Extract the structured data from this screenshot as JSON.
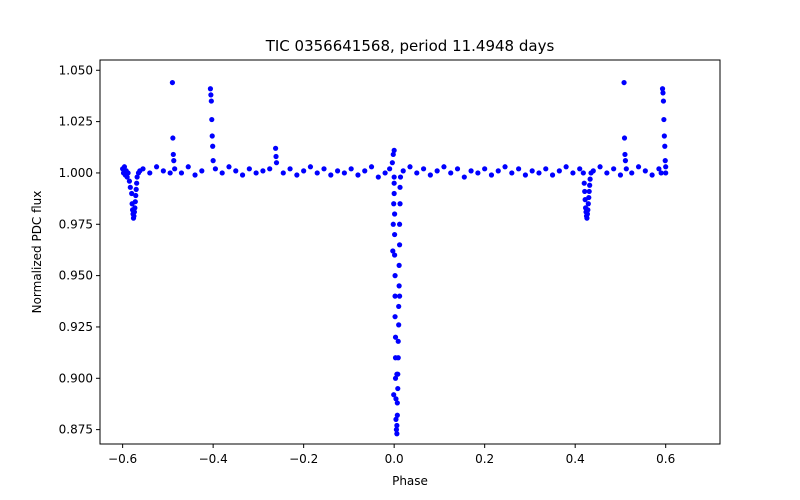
{
  "chart_data": {
    "type": "scatter",
    "title": "TIC 0356641568, period 11.4948 days",
    "xlabel": "Phase",
    "ylabel": "Normalized PDC flux",
    "xlim": [
      -0.65,
      0.72
    ],
    "ylim": [
      0.868,
      1.055
    ],
    "grid": false,
    "legend": "none",
    "marker_color": "#0000ff",
    "x_ticks": [
      -0.6,
      -0.4,
      -0.2,
      0.0,
      0.2,
      0.4,
      0.6
    ],
    "x_tick_labels": [
      "−0.6",
      "−0.4",
      "−0.2",
      "0.0",
      "0.2",
      "0.4",
      "0.6"
    ],
    "y_ticks": [
      0.875,
      0.9,
      0.925,
      0.95,
      0.975,
      1.0,
      1.025,
      1.05
    ],
    "y_tick_labels": [
      "0.875",
      "0.900",
      "0.925",
      "0.950",
      "0.975",
      "1.000",
      "1.025",
      "1.050"
    ],
    "series": [
      {
        "points": [
          [
            -0.6,
            1.002
          ],
          [
            -0.598,
            1.0
          ],
          [
            -0.596,
            1.003
          ],
          [
            -0.594,
            0.999
          ],
          [
            -0.592,
            1.001
          ],
          [
            -0.59,
            0.998
          ],
          [
            -0.588,
            1.0
          ],
          [
            -0.585,
            0.996
          ],
          [
            -0.583,
            0.993
          ],
          [
            -0.58,
            0.99
          ],
          [
            -0.579,
            0.985
          ],
          [
            -0.578,
            0.982
          ],
          [
            -0.577,
            0.98
          ],
          [
            -0.576,
            0.978
          ],
          [
            -0.575,
            0.979
          ],
          [
            -0.574,
            0.981
          ],
          [
            -0.573,
            0.983
          ],
          [
            -0.572,
            0.986
          ],
          [
            -0.571,
            0.989
          ],
          [
            -0.57,
            0.992
          ],
          [
            -0.569,
            0.995
          ],
          [
            -0.568,
            0.998
          ],
          [
            -0.565,
            1.0
          ],
          [
            -0.562,
            1.001
          ],
          [
            -0.555,
            1.002
          ],
          [
            -0.54,
            1.0
          ],
          [
            -0.525,
            1.003
          ],
          [
            -0.51,
            1.001
          ],
          [
            -0.495,
            1.0
          ],
          [
            -0.49,
            1.044
          ],
          [
            -0.489,
            1.017
          ],
          [
            -0.488,
            1.009
          ],
          [
            -0.487,
            1.006
          ],
          [
            -0.485,
            1.002
          ],
          [
            -0.47,
            1.0
          ],
          [
            -0.455,
            1.003
          ],
          [
            -0.44,
            0.999
          ],
          [
            -0.425,
            1.001
          ],
          [
            -0.406,
            1.041
          ],
          [
            -0.405,
            1.038
          ],
          [
            -0.404,
            1.035
          ],
          [
            -0.403,
            1.026
          ],
          [
            -0.402,
            1.018
          ],
          [
            -0.401,
            1.013
          ],
          [
            -0.4,
            1.006
          ],
          [
            -0.395,
            1.002
          ],
          [
            -0.38,
            1.0
          ],
          [
            -0.365,
            1.003
          ],
          [
            -0.35,
            1.001
          ],
          [
            -0.335,
            0.999
          ],
          [
            -0.32,
            1.002
          ],
          [
            -0.305,
            1.0
          ],
          [
            -0.29,
            1.001
          ],
          [
            -0.275,
            1.002
          ],
          [
            -0.262,
            1.012
          ],
          [
            -0.261,
            1.008
          ],
          [
            -0.26,
            1.005
          ],
          [
            -0.245,
            1.0
          ],
          [
            -0.23,
            1.002
          ],
          [
            -0.215,
            0.999
          ],
          [
            -0.2,
            1.001
          ],
          [
            -0.185,
            1.003
          ],
          [
            -0.17,
            1.0
          ],
          [
            -0.155,
            1.002
          ],
          [
            -0.14,
            0.999
          ],
          [
            -0.125,
            1.001
          ],
          [
            -0.11,
            1.0
          ],
          [
            -0.095,
            1.002
          ],
          [
            -0.08,
            0.999
          ],
          [
            -0.065,
            1.001
          ],
          [
            -0.05,
            1.003
          ],
          [
            -0.035,
            0.998
          ],
          [
            -0.02,
            1.0
          ],
          [
            -0.01,
            1.002
          ],
          [
            -0.004,
            1.005
          ],
          [
            -0.002,
            1.009
          ],
          [
            0.0,
            1.011
          ],
          [
            -0.003,
            0.962
          ],
          [
            -0.002,
            0.975
          ],
          [
            -0.001,
            0.985
          ],
          [
            0.0,
            0.998
          ],
          [
            0.0,
            0.995
          ],
          [
            0.0,
            0.99
          ],
          [
            0.001,
            0.98
          ],
          [
            0.001,
            0.97
          ],
          [
            0.001,
            0.96
          ],
          [
            0.002,
            0.95
          ],
          [
            0.002,
            0.94
          ],
          [
            0.002,
            0.93
          ],
          [
            0.003,
            0.92
          ],
          [
            0.003,
            0.91
          ],
          [
            0.003,
            0.9
          ],
          [
            0.004,
            0.89
          ],
          [
            0.004,
            0.88
          ],
          [
            0.005,
            0.875
          ],
          [
            0.006,
            0.873
          ],
          [
            0.006,
            0.877
          ],
          [
            0.007,
            0.882
          ],
          [
            0.007,
            0.888
          ],
          [
            0.008,
            0.895
          ],
          [
            0.008,
            0.902
          ],
          [
            0.009,
            0.91
          ],
          [
            0.009,
            0.918
          ],
          [
            0.01,
            0.926
          ],
          [
            0.01,
            0.935
          ],
          [
            0.011,
            0.945
          ],
          [
            0.011,
            0.955
          ],
          [
            0.012,
            0.965
          ],
          [
            0.012,
            0.975
          ],
          [
            0.013,
            0.985
          ],
          [
            0.013,
            0.993
          ],
          [
            0.014,
            0.998
          ],
          [
            -0.001,
            0.892
          ],
          [
            0.006,
            0.902
          ],
          [
            0.012,
            0.94
          ],
          [
            0.02,
            1.001
          ],
          [
            0.035,
            1.003
          ],
          [
            0.05,
            1.0
          ],
          [
            0.065,
            1.002
          ],
          [
            0.08,
            0.999
          ],
          [
            0.095,
            1.001
          ],
          [
            0.11,
            1.003
          ],
          [
            0.125,
            1.0
          ],
          [
            0.14,
            1.002
          ],
          [
            0.155,
            0.998
          ],
          [
            0.17,
            1.001
          ],
          [
            0.185,
            1.0
          ],
          [
            0.2,
            1.002
          ],
          [
            0.215,
            0.999
          ],
          [
            0.23,
            1.001
          ],
          [
            0.245,
            1.003
          ],
          [
            0.26,
            1.0
          ],
          [
            0.275,
            1.002
          ],
          [
            0.29,
            0.999
          ],
          [
            0.305,
            1.001
          ],
          [
            0.32,
            1.0
          ],
          [
            0.335,
            1.002
          ],
          [
            0.35,
            0.999
          ],
          [
            0.365,
            1.001
          ],
          [
            0.38,
            1.003
          ],
          [
            0.395,
            1.0
          ],
          [
            0.41,
            1.002
          ],
          [
            0.418,
            1.0
          ],
          [
            0.42,
            0.995
          ],
          [
            0.421,
            0.991
          ],
          [
            0.422,
            0.987
          ],
          [
            0.423,
            0.983
          ],
          [
            0.424,
            0.981
          ],
          [
            0.425,
            0.979
          ],
          [
            0.426,
            0.978
          ],
          [
            0.427,
            0.98
          ],
          [
            0.428,
            0.982
          ],
          [
            0.429,
            0.985
          ],
          [
            0.43,
            0.988
          ],
          [
            0.431,
            0.991
          ],
          [
            0.432,
            0.994
          ],
          [
            0.433,
            0.997
          ],
          [
            0.435,
            1.0
          ],
          [
            0.44,
            1.001
          ],
          [
            0.455,
            1.003
          ],
          [
            0.47,
            1.0
          ],
          [
            0.485,
            1.002
          ],
          [
            0.5,
            0.999
          ],
          [
            0.508,
            1.044
          ],
          [
            0.509,
            1.017
          ],
          [
            0.51,
            1.009
          ],
          [
            0.511,
            1.006
          ],
          [
            0.513,
            1.002
          ],
          [
            0.525,
            1.0
          ],
          [
            0.54,
            1.003
          ],
          [
            0.555,
            1.001
          ],
          [
            0.57,
            0.999
          ],
          [
            0.585,
            1.002
          ],
          [
            0.59,
            1.0
          ],
          [
            0.593,
            1.041
          ],
          [
            0.594,
            1.039
          ],
          [
            0.595,
            1.035
          ],
          [
            0.596,
            1.026
          ],
          [
            0.597,
            1.018
          ],
          [
            0.598,
            1.013
          ],
          [
            0.599,
            1.006
          ],
          [
            0.6,
            1.003
          ],
          [
            0.6,
            1.0
          ]
        ]
      }
    ]
  }
}
